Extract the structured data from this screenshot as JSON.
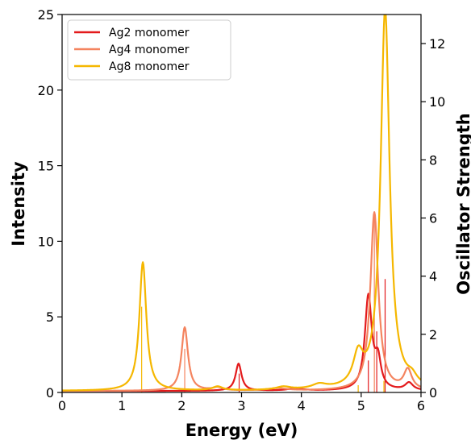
{
  "chart_data": {
    "type": "line",
    "xlabel": "Energy (eV)",
    "ylabel": "Intensity",
    "y2label": "Oscillator Strength",
    "xlim": [
      0,
      6
    ],
    "ylim": [
      0,
      25
    ],
    "y2lim": [
      0,
      13
    ],
    "xticks": [
      "0",
      "1",
      "2",
      "3",
      "4",
      "5",
      "6"
    ],
    "yticks": [
      "0",
      "5",
      "10",
      "15",
      "20",
      "25"
    ],
    "y2ticks": [
      "0",
      "2",
      "4",
      "6",
      "8",
      "10",
      "12"
    ],
    "grid": false,
    "legend_position": "top-left",
    "series": [
      {
        "name": "Ag2 monomer",
        "color": "#e31a1c",
        "baseline": 0.1,
        "peaks": [
          {
            "x": 2.95,
            "height": 1.8,
            "width": 0.06
          },
          {
            "x": 3.9,
            "height": 0.15,
            "width": 0.15
          },
          {
            "x": 5.12,
            "height": 6.2,
            "width": 0.07
          },
          {
            "x": 5.28,
            "height": 1.8,
            "width": 0.06
          },
          {
            "x": 5.8,
            "height": 0.5,
            "width": 0.08
          }
        ],
        "sticks": [
          {
            "x": 2.96,
            "strength": 0.65
          },
          {
            "x": 5.12,
            "strength": 1.1
          },
          {
            "x": 5.26,
            "strength": 2.1
          },
          {
            "x": 5.4,
            "strength": 3.9
          }
        ]
      },
      {
        "name": "Ag4 monomer",
        "color": "#f4845f",
        "baseline": 0.1,
        "peaks": [
          {
            "x": 2.05,
            "height": 4.2,
            "width": 0.065
          },
          {
            "x": 2.6,
            "height": 0.2,
            "width": 0.1
          },
          {
            "x": 3.6,
            "height": 0.15,
            "width": 0.2
          },
          {
            "x": 5.22,
            "height": 11.8,
            "width": 0.08
          },
          {
            "x": 5.78,
            "height": 1.3,
            "width": 0.08
          }
        ],
        "sticks": [
          {
            "x": 2.05,
            "strength": 1.5
          },
          {
            "x": 5.22,
            "strength": 6.2
          }
        ]
      },
      {
        "name": "Ag8 monomer",
        "color": "#f5b700",
        "baseline": 0.1,
        "peaks": [
          {
            "x": 1.35,
            "height": 8.5,
            "width": 0.07
          },
          {
            "x": 2.6,
            "height": 0.25,
            "width": 0.1
          },
          {
            "x": 3.7,
            "height": 0.2,
            "width": 0.15
          },
          {
            "x": 4.3,
            "height": 0.3,
            "width": 0.15
          },
          {
            "x": 4.95,
            "height": 2.0,
            "width": 0.1
          },
          {
            "x": 5.4,
            "height": 25.2,
            "width": 0.09
          },
          {
            "x": 5.85,
            "height": 0.5,
            "width": 0.1
          }
        ],
        "sticks": [
          {
            "x": 1.33,
            "strength": 2.95
          },
          {
            "x": 4.95,
            "strength": 0.25
          },
          {
            "x": 5.38,
            "strength": 0.4
          }
        ]
      }
    ]
  }
}
